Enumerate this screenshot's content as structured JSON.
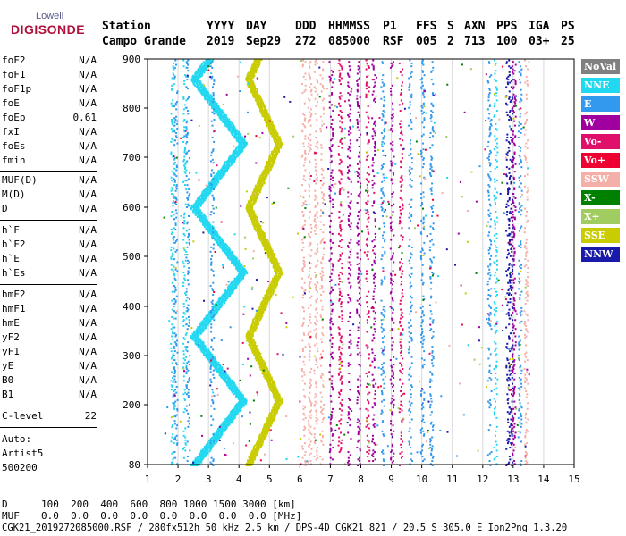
{
  "logo": {
    "top": "Lowell",
    "main": "DIGISONDE"
  },
  "header": {
    "labels": [
      "Station",
      "YYYY",
      "DAY",
      "DDD",
      "HHMMSS",
      "P1",
      "FFS",
      "S",
      "AXN",
      "PPS",
      "IGA",
      "PS"
    ],
    "values": [
      "Campo Grande",
      "2019",
      "Sep29",
      "272",
      "085000",
      "RSF",
      "005",
      "2",
      "713",
      "100",
      "03+",
      "25"
    ]
  },
  "params": {
    "group1": [
      {
        "label": "foF2",
        "value": "N/A"
      },
      {
        "label": "foF1",
        "value": "N/A"
      },
      {
        "label": "foF1p",
        "value": "N/A"
      },
      {
        "label": "foE",
        "value": "N/A"
      },
      {
        "label": "foEp",
        "value": "0.61"
      },
      {
        "label": "fxI",
        "value": "N/A"
      },
      {
        "label": "foEs",
        "value": "N/A"
      },
      {
        "label": "fmin",
        "value": "N/A"
      }
    ],
    "group2": [
      {
        "label": "MUF(D)",
        "value": "N/A"
      },
      {
        "label": "M(D)",
        "value": "N/A"
      },
      {
        "label": "D",
        "value": "N/A"
      }
    ],
    "group3": [
      {
        "label": "h`F",
        "value": "N/A"
      },
      {
        "label": "h`F2",
        "value": "N/A"
      },
      {
        "label": "h`E",
        "value": "N/A"
      },
      {
        "label": "h`Es",
        "value": "N/A"
      }
    ],
    "group4": [
      {
        "label": "hmF2",
        "value": "N/A"
      },
      {
        "label": "hmF1",
        "value": "N/A"
      },
      {
        "label": "hmE",
        "value": "N/A"
      },
      {
        "label": "yF2",
        "value": "N/A"
      },
      {
        "label": "yF1",
        "value": "N/A"
      },
      {
        "label": "yE",
        "value": "N/A"
      },
      {
        "label": "B0",
        "value": "N/A"
      },
      {
        "label": "B1",
        "value": "N/A"
      }
    ],
    "clevel": {
      "label": "C-level",
      "value": "22"
    }
  },
  "auto": {
    "line1": "Auto:",
    "line2": "Artist5",
    "line3": "500200"
  },
  "plot": {
    "y_ticks": [
      "900",
      "800",
      "700",
      "600",
      "500",
      "400",
      "300",
      "200",
      "80"
    ],
    "x_ticks": [
      "1",
      "2",
      "3",
      "4",
      "5",
      "6",
      "7",
      "8",
      "9",
      "10",
      "11",
      "12",
      "13",
      "14",
      "15"
    ]
  },
  "legend": [
    {
      "label": "NoVal",
      "color": "#808080"
    },
    {
      "label": "NNE",
      "color": "#22d8f0"
    },
    {
      "label": "E",
      "color": "#3399ee"
    },
    {
      "label": "W",
      "color": "#a000a0"
    },
    {
      "label": "Vo-",
      "color": "#e0106a"
    },
    {
      "label": "Vo+",
      "color": "#ee0033"
    },
    {
      "label": "SSW",
      "color": "#f4b0a8"
    },
    {
      "label": "X-",
      "color": "#008000"
    },
    {
      "label": "X+",
      "color": "#a0cc60"
    },
    {
      "label": "SSE",
      "color": "#c8cc00"
    },
    {
      "label": "NNW",
      "color": "#1a1aaa"
    }
  ],
  "footer": {
    "d_label": "D",
    "d_values": "100  200  400  600  800 1000 1500 3000 [km]",
    "muf_label": "MUF",
    "muf_values": "0.0  0.0  0.0  0.0  0.0  0.0  0.0  0.0 [MHz]",
    "info": "CGK21_2019272085000.RSF / 280fx512h 50 kHz 2.5 km / DPS-4D CGK21 821 / 20.5 S 305.0 E Ion2Png 1.3.20"
  }
}
